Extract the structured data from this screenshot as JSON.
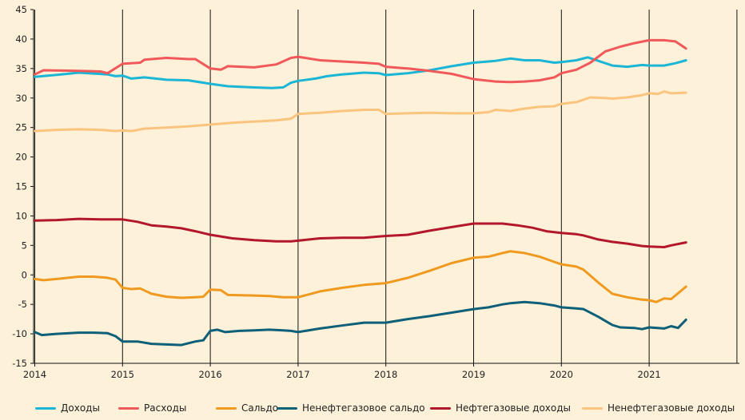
{
  "chart_data": {
    "type": "line",
    "title": "",
    "xlabel": "",
    "ylabel": "",
    "xlim": [
      2014,
      2022
    ],
    "ylim": [
      -15,
      45
    ],
    "x_ticks": [
      "2014",
      "2015",
      "2016",
      "2017",
      "2018",
      "2019",
      "2020",
      "2021"
    ],
    "y_ticks": [
      "45",
      "40",
      "35",
      "30",
      "25",
      "20",
      "15",
      "10",
      "5",
      "0",
      "-5",
      "-10",
      "-15"
    ],
    "grid": "vertical",
    "legend_position": "bottom",
    "series": [
      {
        "name": "Доходы",
        "color": "#1bb6d6",
        "points": [
          [
            2014,
            33.6
          ],
          [
            2014.3,
            34
          ],
          [
            2014.5,
            34.3
          ],
          [
            2014.83,
            34
          ],
          [
            2014.92,
            33.7
          ],
          [
            2015,
            33.8
          ],
          [
            2015.1,
            33.3
          ],
          [
            2015.25,
            33.5
          ],
          [
            2015.5,
            33.1
          ],
          [
            2015.75,
            33
          ],
          [
            2016,
            32.4
          ],
          [
            2016.2,
            32
          ],
          [
            2016.5,
            31.8
          ],
          [
            2016.7,
            31.7
          ],
          [
            2016.83,
            31.8
          ],
          [
            2016.92,
            32.6
          ],
          [
            2017,
            32.9
          ],
          [
            2017.2,
            33.3
          ],
          [
            2017.33,
            33.7
          ],
          [
            2017.5,
            34
          ],
          [
            2017.75,
            34.3
          ],
          [
            2017.92,
            34.2
          ],
          [
            2018,
            33.9
          ],
          [
            2018.25,
            34.2
          ],
          [
            2018.5,
            34.7
          ],
          [
            2018.75,
            35.4
          ],
          [
            2019,
            36
          ],
          [
            2019.25,
            36.3
          ],
          [
            2019.42,
            36.7
          ],
          [
            2019.58,
            36.4
          ],
          [
            2019.75,
            36.4
          ],
          [
            2019.92,
            36
          ],
          [
            2020,
            36.1
          ],
          [
            2020.17,
            36.4
          ],
          [
            2020.3,
            36.9
          ],
          [
            2020.42,
            36.3
          ],
          [
            2020.58,
            35.5
          ],
          [
            2020.75,
            35.3
          ],
          [
            2020.92,
            35.6
          ],
          [
            2021,
            35.5
          ],
          [
            2021.17,
            35.5
          ],
          [
            2021.3,
            35.9
          ],
          [
            2021.42,
            36.4
          ]
        ]
      },
      {
        "name": "Расходы",
        "color": "#f1585a",
        "points": [
          [
            2014,
            34
          ],
          [
            2014.1,
            34.7
          ],
          [
            2014.5,
            34.6
          ],
          [
            2014.75,
            34.5
          ],
          [
            2014.83,
            34.2
          ],
          [
            2015,
            35.8
          ],
          [
            2015.2,
            36
          ],
          [
            2015.25,
            36.5
          ],
          [
            2015.5,
            36.8
          ],
          [
            2015.75,
            36.6
          ],
          [
            2015.83,
            36.6
          ],
          [
            2016,
            35
          ],
          [
            2016.12,
            34.8
          ],
          [
            2016.2,
            35.4
          ],
          [
            2016.5,
            35.2
          ],
          [
            2016.75,
            35.7
          ],
          [
            2016.92,
            36.8
          ],
          [
            2017,
            37
          ],
          [
            2017.25,
            36.4
          ],
          [
            2017.5,
            36.2
          ],
          [
            2017.75,
            36
          ],
          [
            2017.92,
            35.8
          ],
          [
            2018,
            35.3
          ],
          [
            2018.25,
            35
          ],
          [
            2018.5,
            34.6
          ],
          [
            2018.75,
            34.1
          ],
          [
            2019,
            33.2
          ],
          [
            2019.25,
            32.8
          ],
          [
            2019.42,
            32.7
          ],
          [
            2019.58,
            32.8
          ],
          [
            2019.75,
            33
          ],
          [
            2019.92,
            33.5
          ],
          [
            2020,
            34.2
          ],
          [
            2020.17,
            34.8
          ],
          [
            2020.33,
            36
          ],
          [
            2020.5,
            37.9
          ],
          [
            2020.67,
            38.7
          ],
          [
            2020.83,
            39.3
          ],
          [
            2021,
            39.8
          ],
          [
            2021.17,
            39.8
          ],
          [
            2021.3,
            39.6
          ],
          [
            2021.42,
            38.4
          ]
        ]
      },
      {
        "name": "Сальдо",
        "color": "#ef9a1e",
        "points": [
          [
            2014,
            -0.7
          ],
          [
            2014.1,
            -0.9
          ],
          [
            2014.25,
            -0.7
          ],
          [
            2014.5,
            -0.3
          ],
          [
            2014.67,
            -0.3
          ],
          [
            2014.83,
            -0.5
          ],
          [
            2014.92,
            -0.8
          ],
          [
            2015,
            -2.2
          ],
          [
            2015.1,
            -2.4
          ],
          [
            2015.2,
            -2.3
          ],
          [
            2015.33,
            -3.2
          ],
          [
            2015.5,
            -3.7
          ],
          [
            2015.67,
            -3.9
          ],
          [
            2015.83,
            -3.8
          ],
          [
            2015.92,
            -3.7
          ],
          [
            2016,
            -2.5
          ],
          [
            2016.12,
            -2.6
          ],
          [
            2016.2,
            -3.4
          ],
          [
            2016.5,
            -3.5
          ],
          [
            2016.67,
            -3.6
          ],
          [
            2016.83,
            -3.8
          ],
          [
            2016.92,
            -3.8
          ],
          [
            2017,
            -3.8
          ],
          [
            2017.25,
            -2.8
          ],
          [
            2017.5,
            -2.2
          ],
          [
            2017.75,
            -1.7
          ],
          [
            2018,
            -1.4
          ],
          [
            2018.25,
            -0.5
          ],
          [
            2018.5,
            0.7
          ],
          [
            2018.75,
            2
          ],
          [
            2019,
            2.9
          ],
          [
            2019.17,
            3.1
          ],
          [
            2019.33,
            3.7
          ],
          [
            2019.42,
            4
          ],
          [
            2019.58,
            3.7
          ],
          [
            2019.75,
            3.1
          ],
          [
            2019.92,
            2.2
          ],
          [
            2020,
            1.8
          ],
          [
            2020.17,
            1.4
          ],
          [
            2020.25,
            0.9
          ],
          [
            2020.42,
            -1.3
          ],
          [
            2020.58,
            -3.2
          ],
          [
            2020.75,
            -3.8
          ],
          [
            2020.92,
            -4.2
          ],
          [
            2021,
            -4.3
          ],
          [
            2021.08,
            -4.6
          ],
          [
            2021.17,
            -4
          ],
          [
            2021.25,
            -4.1
          ],
          [
            2021.42,
            -2
          ]
        ]
      },
      {
        "name": "Ненефтегазовое сальдо",
        "color": "#0e5f78",
        "points": [
          [
            2014,
            -9.7
          ],
          [
            2014.08,
            -10.2
          ],
          [
            2014.25,
            -10
          ],
          [
            2014.5,
            -9.8
          ],
          [
            2014.67,
            -9.8
          ],
          [
            2014.83,
            -9.9
          ],
          [
            2014.92,
            -10.4
          ],
          [
            2015,
            -11.3
          ],
          [
            2015.17,
            -11.3
          ],
          [
            2015.33,
            -11.7
          ],
          [
            2015.5,
            -11.8
          ],
          [
            2015.67,
            -11.9
          ],
          [
            2015.83,
            -11.3
          ],
          [
            2015.92,
            -11.1
          ],
          [
            2016,
            -9.5
          ],
          [
            2016.08,
            -9.3
          ],
          [
            2016.17,
            -9.7
          ],
          [
            2016.33,
            -9.5
          ],
          [
            2016.5,
            -9.4
          ],
          [
            2016.67,
            -9.3
          ],
          [
            2016.83,
            -9.4
          ],
          [
            2016.92,
            -9.5
          ],
          [
            2017,
            -9.7
          ],
          [
            2017.25,
            -9.1
          ],
          [
            2017.5,
            -8.6
          ],
          [
            2017.75,
            -8.1
          ],
          [
            2018,
            -8.1
          ],
          [
            2018.25,
            -7.5
          ],
          [
            2018.5,
            -7
          ],
          [
            2018.75,
            -6.4
          ],
          [
            2019,
            -5.8
          ],
          [
            2019.17,
            -5.5
          ],
          [
            2019.33,
            -5
          ],
          [
            2019.42,
            -4.8
          ],
          [
            2019.58,
            -4.6
          ],
          [
            2019.75,
            -4.8
          ],
          [
            2019.92,
            -5.2
          ],
          [
            2020,
            -5.5
          ],
          [
            2020.17,
            -5.7
          ],
          [
            2020.25,
            -5.8
          ],
          [
            2020.42,
            -7.1
          ],
          [
            2020.58,
            -8.5
          ],
          [
            2020.67,
            -8.9
          ],
          [
            2020.83,
            -9
          ],
          [
            2020.92,
            -9.2
          ],
          [
            2021,
            -8.9
          ],
          [
            2021.17,
            -9.1
          ],
          [
            2021.25,
            -8.7
          ],
          [
            2021.33,
            -9
          ],
          [
            2021.42,
            -7.6
          ]
        ]
      },
      {
        "name": "Нефтегазовые доходы",
        "color": "#b3172b",
        "points": [
          [
            2014,
            9.2
          ],
          [
            2014.25,
            9.3
          ],
          [
            2014.5,
            9.5
          ],
          [
            2014.75,
            9.4
          ],
          [
            2015,
            9.4
          ],
          [
            2015.17,
            9
          ],
          [
            2015.33,
            8.4
          ],
          [
            2015.5,
            8.2
          ],
          [
            2015.67,
            7.9
          ],
          [
            2015.83,
            7.4
          ],
          [
            2016,
            6.8
          ],
          [
            2016.25,
            6.2
          ],
          [
            2016.5,
            5.9
          ],
          [
            2016.75,
            5.7
          ],
          [
            2016.92,
            5.7
          ],
          [
            2017,
            5.8
          ],
          [
            2017.25,
            6.2
          ],
          [
            2017.5,
            6.3
          ],
          [
            2017.75,
            6.3
          ],
          [
            2018,
            6.6
          ],
          [
            2018.25,
            6.8
          ],
          [
            2018.5,
            7.5
          ],
          [
            2018.75,
            8.1
          ],
          [
            2019,
            8.7
          ],
          [
            2019.17,
            8.7
          ],
          [
            2019.33,
            8.7
          ],
          [
            2019.5,
            8.4
          ],
          [
            2019.67,
            8
          ],
          [
            2019.83,
            7.4
          ],
          [
            2020,
            7.1
          ],
          [
            2020.17,
            6.9
          ],
          [
            2020.25,
            6.7
          ],
          [
            2020.42,
            6
          ],
          [
            2020.58,
            5.6
          ],
          [
            2020.75,
            5.3
          ],
          [
            2020.92,
            4.9
          ],
          [
            2021,
            4.8
          ],
          [
            2021.17,
            4.7
          ],
          [
            2021.25,
            5
          ],
          [
            2021.42,
            5.5
          ]
        ]
      },
      {
        "name": "Ненефтегазовые доходы",
        "color": "#fbc47e",
        "points": [
          [
            2014,
            24.4
          ],
          [
            2014.25,
            24.6
          ],
          [
            2014.5,
            24.7
          ],
          [
            2014.75,
            24.6
          ],
          [
            2014.92,
            24.4
          ],
          [
            2015,
            24.5
          ],
          [
            2015.1,
            24.4
          ],
          [
            2015.25,
            24.8
          ],
          [
            2015.5,
            25
          ],
          [
            2015.75,
            25.2
          ],
          [
            2016,
            25.5
          ],
          [
            2016.25,
            25.8
          ],
          [
            2016.5,
            26
          ],
          [
            2016.75,
            26.2
          ],
          [
            2016.92,
            26.5
          ],
          [
            2017,
            27.3
          ],
          [
            2017.25,
            27.5
          ],
          [
            2017.5,
            27.8
          ],
          [
            2017.75,
            28
          ],
          [
            2017.92,
            28
          ],
          [
            2018,
            27.3
          ],
          [
            2018.25,
            27.4
          ],
          [
            2018.5,
            27.5
          ],
          [
            2018.75,
            27.4
          ],
          [
            2019,
            27.4
          ],
          [
            2019.17,
            27.6
          ],
          [
            2019.25,
            28
          ],
          [
            2019.42,
            27.8
          ],
          [
            2019.58,
            28.2
          ],
          [
            2019.75,
            28.5
          ],
          [
            2019.92,
            28.6
          ],
          [
            2020,
            29
          ],
          [
            2020.17,
            29.3
          ],
          [
            2020.33,
            30.1
          ],
          [
            2020.5,
            30
          ],
          [
            2020.58,
            29.9
          ],
          [
            2020.75,
            30.1
          ],
          [
            2020.92,
            30.5
          ],
          [
            2021,
            30.8
          ],
          [
            2021.1,
            30.7
          ],
          [
            2021.17,
            31.1
          ],
          [
            2021.25,
            30.8
          ],
          [
            2021.42,
            30.9
          ]
        ]
      }
    ]
  }
}
